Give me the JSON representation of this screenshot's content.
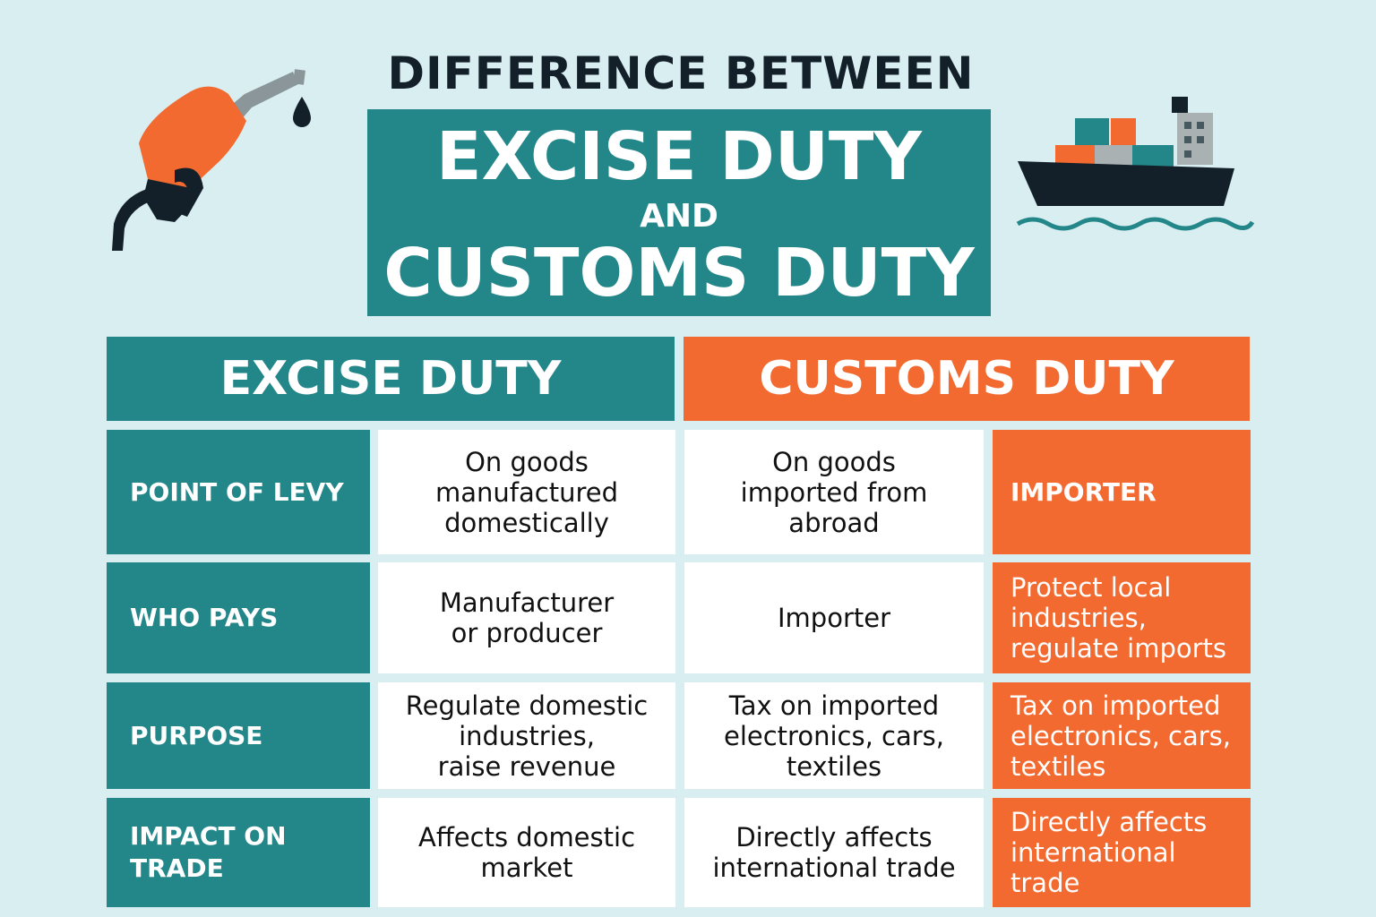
{
  "header": {
    "heading": "DIFFERENCE BETWEEN",
    "title_line1": "EXCISE DUTY",
    "title_and": "AND",
    "title_line2": "CUSTOMS DUTY"
  },
  "icons": {
    "left": "fuel-pump-nozzle-icon",
    "right": "cargo-ship-icon"
  },
  "colors": {
    "teal": "#23878a",
    "orange": "#f26a30",
    "background": "#d9eef0",
    "dark": "#13202a"
  },
  "table": {
    "columns": {
      "excise": "EXCISE DUTY",
      "customs": "CUSTOMS DUTY"
    },
    "rows": [
      {
        "label": "POINT OF LEVY",
        "excise": "On goods\nmanufactured\ndomestically",
        "customs": "On goods\nimported from\nabroad",
        "customs_side": "IMPORTER"
      },
      {
        "label": "WHO PAYS",
        "excise": "Manufacturer\nor producer",
        "customs": "Importer",
        "customs_side": "Protect local\nindustries,\nregulate imports"
      },
      {
        "label": "PURPOSE",
        "excise": "Regulate domestic\nindustries,\nraise revenue",
        "customs": "Tax on imported\nelectronics, cars,\ntextiles",
        "customs_side": "Tax on imported\nelectronics, cars,\ntextiles"
      },
      {
        "label": "IMPACT ON\nTRADE",
        "excise": "Affects domestic\nmarket",
        "customs": "Directly affects\ninternational  trade",
        "customs_side": "Directly affects\ninternational\ntrade"
      }
    ]
  }
}
